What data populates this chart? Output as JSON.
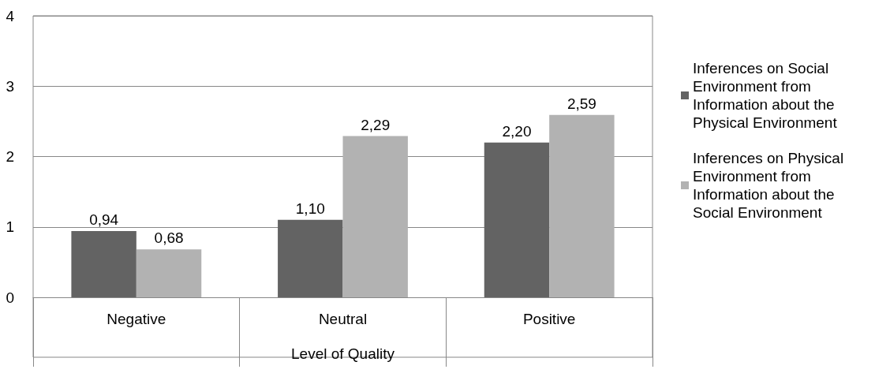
{
  "chart_data": {
    "type": "bar",
    "xlabel": "Level of Quality",
    "categories": [
      "Negative",
      "Neutral",
      "Positive"
    ],
    "series": [
      {
        "name": "Inferences on Social Environment from Information about the Physical Environment",
        "color": "#636363",
        "values": [
          0.94,
          1.1,
          2.2
        ],
        "value_labels": [
          "0,94",
          "1,10",
          "2,20"
        ]
      },
      {
        "name": "Inferences on Physical Environment from Information about the Social Environment",
        "color": "#b2b2b2",
        "values": [
          0.68,
          2.29,
          2.59
        ],
        "value_labels": [
          "0,68",
          "2,29",
          "2,59"
        ]
      }
    ],
    "ylim": [
      0,
      4
    ],
    "yticks": [
      0,
      1,
      2,
      3,
      4
    ],
    "grid": "y",
    "legend": "right"
  }
}
